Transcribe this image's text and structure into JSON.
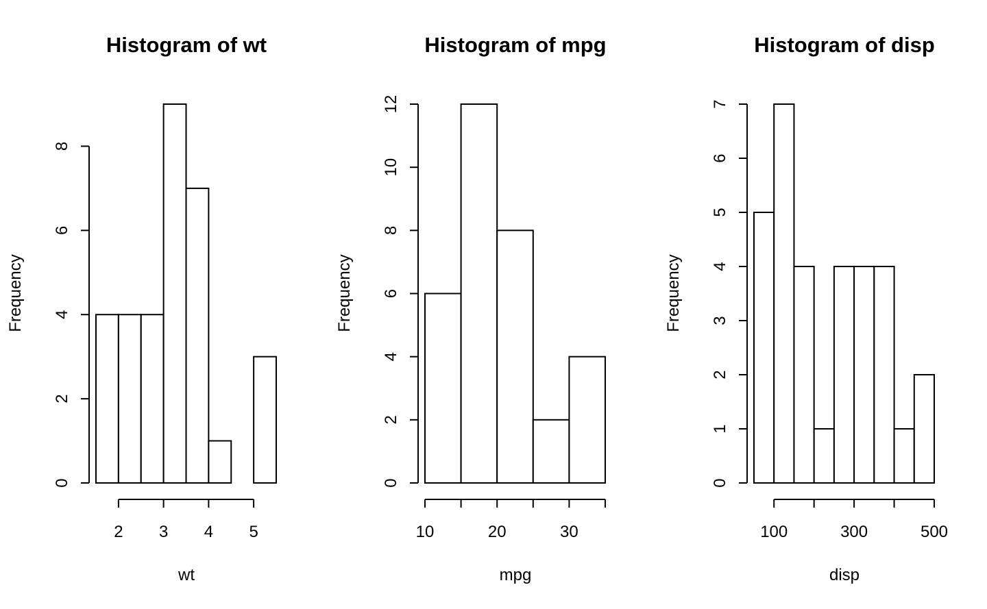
{
  "chart_data": [
    {
      "type": "bar",
      "title": "Histogram of wt",
      "xlabel": "wt",
      "ylabel": "Frequency",
      "bin_edges": [
        1.5,
        2.0,
        2.5,
        3.0,
        3.5,
        4.0,
        4.5,
        5.0,
        5.5
      ],
      "values": [
        4,
        4,
        4,
        9,
        7,
        1,
        0,
        3
      ],
      "xlim": [
        1.5,
        5.5
      ],
      "ylim": [
        0,
        9
      ],
      "x_ticks": [
        2,
        3,
        4,
        5
      ],
      "x_tick_labels": [
        "2",
        "3",
        "4",
        "5"
      ],
      "y_ticks": [
        0,
        2,
        4,
        6,
        8
      ],
      "y_tick_labels": [
        "0",
        "2",
        "4",
        "6",
        "8"
      ],
      "grid": false
    },
    {
      "type": "bar",
      "title": "Histogram of mpg",
      "xlabel": "mpg",
      "ylabel": "Frequency",
      "bin_edges": [
        10,
        15,
        20,
        25,
        30,
        35
      ],
      "values": [
        6,
        12,
        8,
        2,
        4
      ],
      "xlim": [
        10,
        35
      ],
      "ylim": [
        0,
        12
      ],
      "x_ticks": [
        10,
        15,
        20,
        25,
        30,
        35
      ],
      "x_tick_labels": [
        "10",
        "",
        "20",
        "",
        "30",
        ""
      ],
      "y_ticks": [
        0,
        2,
        4,
        6,
        8,
        10,
        12
      ],
      "y_tick_labels": [
        "0",
        "2",
        "4",
        "6",
        "8",
        "10",
        "12"
      ],
      "grid": false
    },
    {
      "type": "bar",
      "title": "Histogram of disp",
      "xlabel": "disp",
      "ylabel": "Frequency",
      "bin_edges": [
        50,
        100,
        150,
        200,
        250,
        300,
        350,
        400,
        450,
        500
      ],
      "values": [
        5,
        7,
        4,
        1,
        4,
        4,
        4,
        1,
        2
      ],
      "xlim": [
        50,
        500
      ],
      "ylim": [
        0,
        7
      ],
      "x_ticks": [
        100,
        200,
        300,
        400,
        500
      ],
      "x_tick_labels": [
        "100",
        "",
        "300",
        "",
        "500"
      ],
      "y_ticks": [
        0,
        1,
        2,
        3,
        4,
        5,
        6,
        7
      ],
      "y_tick_labels": [
        "0",
        "1",
        "2",
        "3",
        "4",
        "5",
        "6",
        "7"
      ],
      "grid": false
    }
  ]
}
